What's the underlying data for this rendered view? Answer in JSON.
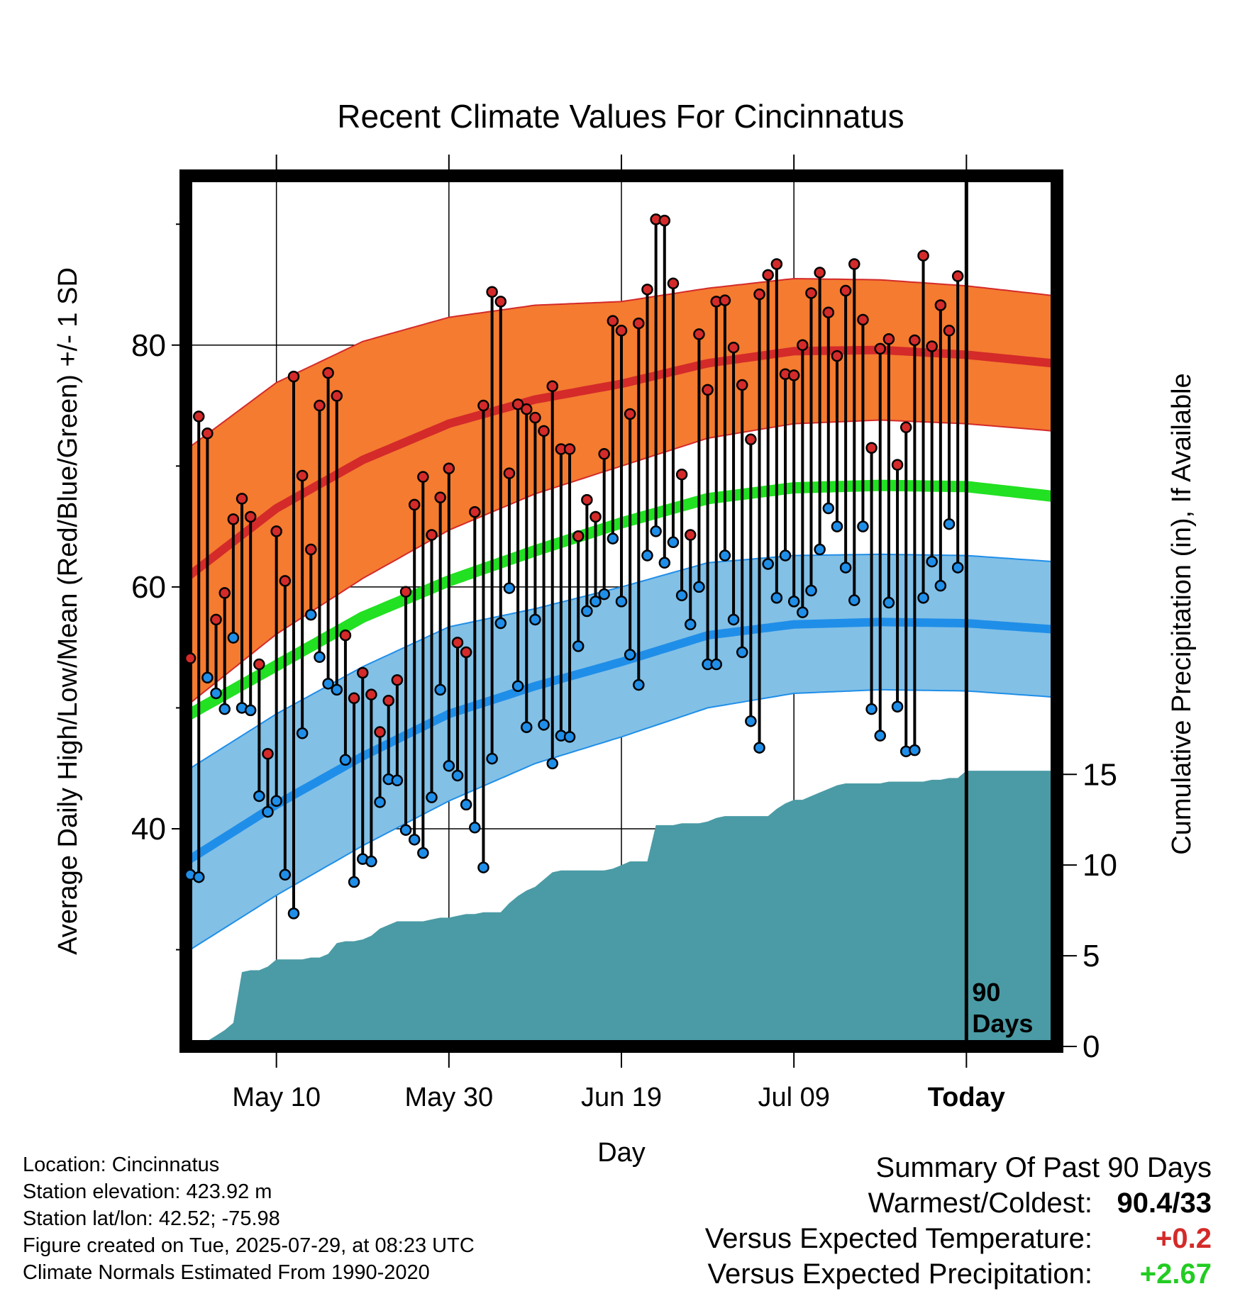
{
  "chart_data": {
    "type": "line",
    "title": "Recent Climate Values For Cincinnatus",
    "xlabel": "Day",
    "ylabel_left": "Average Daily High/Low/Mean (Red/Blue/Green) +/- 1 SD",
    "ylabel_right": "Cumulative Precipitation (in), If Available",
    "x_tick_labels": [
      "May 10",
      "May 30",
      "Jun 19",
      "Jul 09",
      "Today"
    ],
    "x_tick_days": [
      10,
      30,
      50,
      70,
      90
    ],
    "xlim": [
      -0.5,
      100.5
    ],
    "ylim_left": [
      22,
      94
    ],
    "ylim_right": [
      0,
      48
    ],
    "y_ticks_left": [
      40,
      60,
      80
    ],
    "y_ticks_right": [
      0,
      5,
      10,
      15
    ],
    "today_marker": {
      "day": 90,
      "label_line1": "90",
      "label_line2": "Days"
    },
    "normal_bands": {
      "days": [
        0,
        10,
        20,
        30,
        40,
        50,
        60,
        70,
        80,
        90,
        100
      ],
      "high_mean": [
        61,
        66.5,
        70.5,
        73.5,
        75.5,
        76.8,
        78.5,
        79.5,
        79.6,
        79.2,
        78.5
      ],
      "high_sd": [
        10.6,
        10.4,
        9.8,
        8.8,
        7.8,
        6.8,
        6.2,
        6,
        5.8,
        5.7,
        5.6
      ],
      "low_mean": [
        37.5,
        42,
        46,
        49.5,
        51.8,
        53.8,
        56,
        56.9,
        57.1,
        57,
        56.5
      ],
      "low_sd": [
        7.5,
        7.5,
        7.4,
        7.2,
        6.4,
        6.2,
        6,
        5.7,
        5.6,
        5.6,
        5.6
      ],
      "mean": [
        49.5,
        53.5,
        57.5,
        60.5,
        63,
        65.3,
        67.3,
        68.2,
        68.4,
        68.3,
        67.5
      ]
    },
    "series": [
      {
        "name": "High",
        "color": "#d42a2a",
        "values": [
          54.1,
          74.1,
          72.7,
          57.3,
          59.5,
          65.6,
          67.3,
          65.8,
          53.6,
          46.2,
          64.6,
          60.5,
          77.4,
          69.2,
          63.1,
          75,
          77.7,
          75.8,
          56,
          50.8,
          52.9,
          51.1,
          48,
          50.6,
          52.3,
          59.6,
          66.8,
          69.1,
          64.3,
          67.4,
          69.8,
          55.4,
          54.6,
          66.2,
          75,
          84.4,
          83.6,
          69.4,
          75.1,
          74.7,
          74,
          72.9,
          76.6,
          71.4,
          71.4,
          64.2,
          67.2,
          65.8,
          71,
          82,
          81.2,
          74.3,
          81.8,
          84.6,
          90.4,
          90.3,
          85.1,
          69.3,
          64.3,
          80.9,
          76.3,
          83.6,
          83.7,
          79.8,
          76.7,
          72.2,
          84.2,
          85.8,
          86.7,
          77.6,
          77.5,
          80,
          84.3,
          86,
          82.7,
          79.1,
          84.5,
          86.7,
          82.1,
          71.5,
          79.7,
          80.5,
          70.1,
          73.2,
          80.4,
          87.4,
          79.9,
          83.3,
          81.2,
          85.7
        ]
      },
      {
        "name": "Low",
        "color": "#1f8ee8",
        "values": [
          36.2,
          36,
          52.5,
          51.2,
          49.9,
          55.8,
          50,
          49.8,
          42.7,
          41.4,
          42.3,
          36.2,
          33,
          47.9,
          57.7,
          54.2,
          52,
          51.5,
          45.7,
          35.6,
          37.5,
          37.3,
          42.2,
          44.1,
          44,
          39.9,
          39.1,
          38,
          42.6,
          51.5,
          45.2,
          44.4,
          42,
          40.1,
          36.8,
          45.8,
          57,
          59.9,
          51.8,
          48.4,
          57.3,
          48.6,
          45.4,
          47.7,
          47.6,
          55.1,
          58,
          58.8,
          59.4,
          64,
          58.8,
          54.4,
          51.9,
          62.6,
          64.6,
          62,
          63.7,
          59.3,
          56.9,
          60,
          53.6,
          53.6,
          62.6,
          57.3,
          54.6,
          48.9,
          46.7,
          61.9,
          59.1,
          62.6,
          58.8,
          57.9,
          59.7,
          63.1,
          66.5,
          65,
          61.6,
          58.9,
          65,
          49.9,
          47.7,
          58.7,
          50.1,
          46.4,
          46.5,
          59.1,
          62.1,
          60.1,
          65.2,
          61.6
        ]
      }
    ],
    "precipitation": {
      "days": [
        1,
        2,
        3,
        4,
        5,
        6,
        7,
        8,
        9,
        10,
        11,
        12,
        13,
        14,
        15,
        16,
        17,
        18,
        19,
        20,
        21,
        22,
        23,
        24,
        25,
        26,
        27,
        28,
        29,
        30,
        31,
        32,
        33,
        34,
        35,
        36,
        37,
        38,
        39,
        40,
        41,
        42,
        43,
        44,
        45,
        46,
        47,
        48,
        49,
        50,
        51,
        52,
        53,
        54,
        55,
        56,
        57,
        58,
        59,
        60,
        61,
        62,
        63,
        64,
        65,
        66,
        67,
        68,
        69,
        70,
        71,
        72,
        73,
        74,
        75,
        76,
        77,
        78,
        79,
        80,
        81,
        82,
        83,
        84,
        85,
        86,
        87,
        88,
        89,
        90,
        100
      ],
      "values": [
        0,
        0.3,
        0.6,
        0.9,
        1.3,
        4.1,
        4.2,
        4.2,
        4.4,
        4.8,
        4.8,
        4.8,
        4.8,
        4.9,
        4.9,
        5.1,
        5.7,
        5.8,
        5.8,
        5.9,
        6.1,
        6.5,
        6.7,
        6.9,
        6.9,
        6.9,
        6.9,
        7,
        7.1,
        7.1,
        7.2,
        7.3,
        7.3,
        7.4,
        7.4,
        7.4,
        7.9,
        8.3,
        8.6,
        8.8,
        9.2,
        9.6,
        9.7,
        9.7,
        9.7,
        9.7,
        9.7,
        9.7,
        9.8,
        10.0,
        10.2,
        10.2,
        10.2,
        12.2,
        12.2,
        12.2,
        12.3,
        12.3,
        12.3,
        12.4,
        12.6,
        12.7,
        12.7,
        12.7,
        12.7,
        12.7,
        12.7,
        13.1,
        13.4,
        13.6,
        13.6,
        13.8,
        14.0,
        14.2,
        14.4,
        14.5,
        14.5,
        14.5,
        14.5,
        14.5,
        14.6,
        14.6,
        14.6,
        14.6,
        14.6,
        14.7,
        14.7,
        14.8,
        14.8,
        15.2,
        15.2
      ]
    },
    "colors": {
      "high_band": "#f47b30",
      "high_line": "#d42a2a",
      "low_band": "#82c0e6",
      "low_line": "#1f8ee8",
      "mean_line": "#22e022",
      "precip_fill": "#4a9ba5"
    }
  },
  "footer": {
    "location": "Location: Cincinnatus",
    "elevation": "Station elevation: 423.92 m",
    "latlon": "Station lat/lon: 42.52; -75.98",
    "created": "Figure created on Tue, 2025-07-29, at 08:23 UTC",
    "normals": "Climate Normals Estimated From 1990-2020"
  },
  "summary": {
    "title": "Summary Of Past 90 Days",
    "warm_cold_label": "Warmest/Coldest:",
    "warm_cold_value": "90.4/33",
    "temp_label": "Versus Expected Temperature:",
    "temp_value": "+0.2",
    "temp_color": "#d42a2a",
    "precip_label": "Versus Expected Precipitation:",
    "precip_value": "+2.67",
    "precip_color": "#22cc22"
  }
}
